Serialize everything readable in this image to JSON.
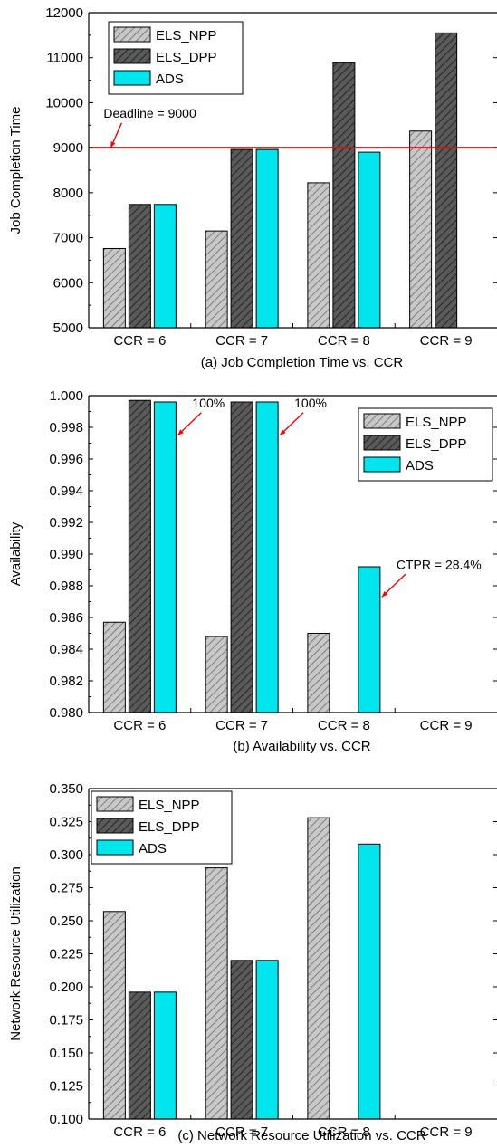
{
  "chart_data": [
    {
      "type": "bar",
      "caption": "(a) Job Completion Time vs. CCR",
      "ylabel": "Job Completion Time",
      "categories": [
        "CCR = 6",
        "CCR = 7",
        "CCR = 8",
        "CCR = 9"
      ],
      "ylim": [
        5000,
        12000
      ],
      "yticks": [
        5000,
        6000,
        7000,
        8000,
        9000,
        10000,
        11000,
        12000
      ],
      "tick_decimals": 0,
      "series": [
        {
          "name": "ELS_NPP",
          "values": [
            6760,
            7150,
            8220,
            9370
          ],
          "color": "#c8c8c8",
          "pattern": "hatch-light"
        },
        {
          "name": "ELS_DPP",
          "values": [
            7740,
            8960,
            10890,
            11550
          ],
          "color": "#555555",
          "pattern": "hatch-dark"
        },
        {
          "name": "ADS",
          "values": [
            7740,
            8960,
            8900,
            null
          ],
          "color": "#00e5ee",
          "pattern": "solid"
        }
      ],
      "hline": {
        "value": 9000,
        "color": "#ff0000"
      },
      "legend_position": "top-left",
      "annotations": [
        {
          "text": "Deadline = 9000",
          "x_category": 0,
          "y": 9670,
          "arrow_to": {
            "x_category": 0,
            "y": 9000
          }
        }
      ]
    },
    {
      "type": "bar",
      "caption": "(b) Availability vs. CCR",
      "ylabel": "Availability",
      "categories": [
        "CCR = 6",
        "CCR = 7",
        "CCR = 8",
        "CCR = 9"
      ],
      "ylim": [
        0.98,
        1.0
      ],
      "yticks": [
        0.98,
        0.982,
        0.984,
        0.986,
        0.988,
        0.99,
        0.992,
        0.994,
        0.996,
        0.998,
        1.0
      ],
      "tick_decimals": 3,
      "series": [
        {
          "name": "ELS_NPP",
          "values": [
            0.9857,
            0.9848,
            0.985,
            null
          ],
          "color": "#c8c8c8",
          "pattern": "hatch-light"
        },
        {
          "name": "ELS_DPP",
          "values": [
            0.9997,
            0.9996,
            null,
            null
          ],
          "color": "#555555",
          "pattern": "hatch-dark"
        },
        {
          "name": "ADS",
          "values": [
            0.9996,
            0.9996,
            0.9892,
            null
          ],
          "color": "#00e5ee",
          "pattern": "solid"
        }
      ],
      "legend_position": "top-right",
      "annotations": [
        {
          "text": "100%",
          "x_category": 0,
          "y": 0.9995,
          "arrow_to": {
            "x_category": 0,
            "y": 0.9975
          }
        },
        {
          "text": "100%",
          "x_category": 1,
          "y": 0.9995,
          "arrow_to": {
            "x_category": 1,
            "y": 0.9975
          }
        },
        {
          "text": "CTPR = 28.4%",
          "x_category": 2,
          "y": 0.9893,
          "arrow_to": {
            "x_category": 2,
            "y": 0.9873
          }
        }
      ]
    },
    {
      "type": "bar",
      "caption": "(c) Network Resource Utilization vs. CCR",
      "ylabel": "Network Resource Utilization",
      "categories": [
        "CCR = 6",
        "CCR = 7",
        "CCR = 8",
        "CCR = 9"
      ],
      "ylim": [
        0.1,
        0.35
      ],
      "yticks": [
        0.1,
        0.125,
        0.15,
        0.175,
        0.2,
        0.225,
        0.25,
        0.275,
        0.3,
        0.325,
        0.35
      ],
      "tick_decimals": 3,
      "series": [
        {
          "name": "ELS_NPP",
          "values": [
            0.257,
            0.29,
            0.328,
            null
          ],
          "color": "#c8c8c8",
          "pattern": "hatch-light"
        },
        {
          "name": "ELS_DPP",
          "values": [
            0.196,
            0.22,
            null,
            null
          ],
          "color": "#555555",
          "pattern": "hatch-dark"
        },
        {
          "name": "ADS",
          "values": [
            0.196,
            0.22,
            0.308,
            null
          ],
          "color": "#00e5ee",
          "pattern": "solid"
        }
      ],
      "legend_position": "top-left",
      "annotations": []
    }
  ]
}
